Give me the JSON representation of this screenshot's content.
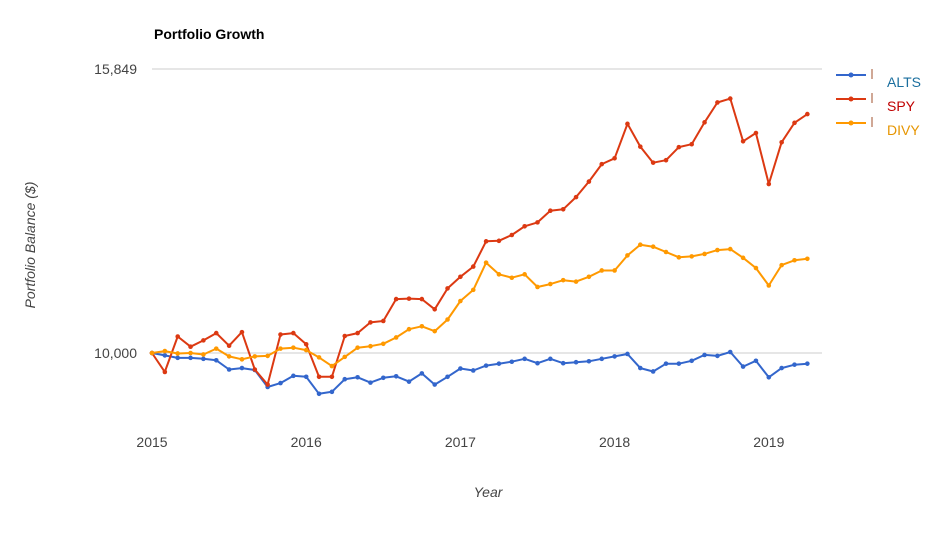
{
  "chart_data": {
    "type": "line",
    "title": "Portfolio Growth",
    "xlabel": "Year",
    "ylabel": "Portfolio Balance ($)",
    "x_ticks": [
      "2015",
      "2016",
      "2017",
      "2018",
      "2019"
    ],
    "y_ticks": [
      {
        "value": 10000,
        "label": "10,000"
      },
      {
        "value": 15849,
        "label": "15,849"
      }
    ],
    "ylim": [
      8650,
      15849
    ],
    "x_start": 2015.0,
    "x_step": 0.0833,
    "legend_position": "right",
    "series": [
      {
        "name": "ALTS",
        "color": "#3366cc",
        "label_color": "#1a6e9e",
        "values": [
          10000,
          9950,
          9900,
          9900,
          9880,
          9850,
          9660,
          9690,
          9650,
          9300,
          9380,
          9530,
          9510,
          9160,
          9200,
          9460,
          9500,
          9390,
          9490,
          9520,
          9410,
          9580,
          9350,
          9510,
          9680,
          9640,
          9740,
          9780,
          9820,
          9880,
          9790,
          9880,
          9790,
          9810,
          9830,
          9880,
          9930,
          9980,
          9690,
          9620,
          9780,
          9780,
          9840,
          9960,
          9940,
          10020,
          9720,
          9840,
          9500,
          9690,
          9760,
          9780
        ]
      },
      {
        "name": "SPY",
        "color": "#dc3912",
        "label_color": "#c00000",
        "values": [
          10000,
          9610,
          10340,
          10130,
          10260,
          10410,
          10150,
          10430,
          9660,
          9350,
          10380,
          10410,
          10180,
          9510,
          9510,
          10350,
          10410,
          10630,
          10660,
          11110,
          11120,
          11110,
          10900,
          11330,
          11570,
          11780,
          12300,
          12310,
          12430,
          12610,
          12690,
          12930,
          12960,
          13210,
          13530,
          13890,
          14010,
          14720,
          14250,
          13920,
          13970,
          14240,
          14300,
          14750,
          15160,
          15240,
          14360,
          14530,
          13480,
          14340,
          14740,
          14920
        ]
      },
      {
        "name": "DIVY",
        "color": "#ff9900",
        "label_color": "#e69500",
        "values": [
          10000,
          10040,
          9990,
          10000,
          9970,
          10090,
          9930,
          9870,
          9930,
          9940,
          10090,
          10110,
          10060,
          9910,
          9730,
          9920,
          10110,
          10140,
          10190,
          10320,
          10490,
          10550,
          10450,
          10690,
          11070,
          11300,
          11860,
          11620,
          11550,
          11620,
          11360,
          11420,
          11500,
          11470,
          11570,
          11700,
          11700,
          12010,
          12230,
          12190,
          12080,
          11970,
          11990,
          12040,
          12120,
          12140,
          11960,
          11750,
          11390,
          11810,
          11910,
          11940
        ]
      }
    ]
  }
}
